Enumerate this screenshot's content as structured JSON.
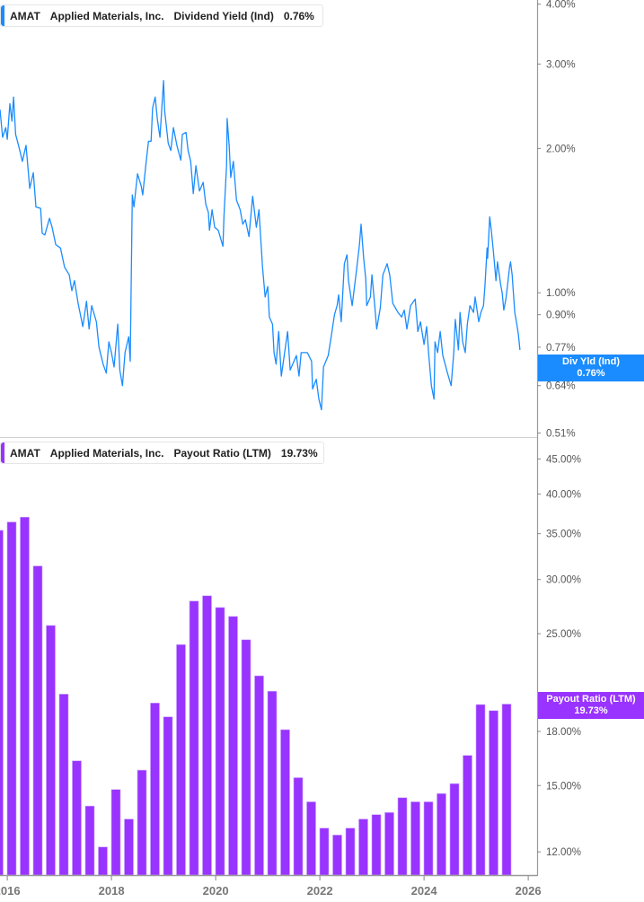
{
  "colors": {
    "yield_line": "#1a8cff",
    "payout_bars": "#9933ff",
    "axis": "#999999"
  },
  "top_legend": {
    "ticker": "AMAT",
    "company": "Applied Materials, Inc.",
    "metric": "Dividend Yield (Ind)",
    "value": "0.76%"
  },
  "bottom_legend": {
    "ticker": "AMAT",
    "company": "Applied Materials, Inc.",
    "metric": "Payout Ratio (LTM)",
    "value": "19.73%"
  },
  "top_tag": {
    "label": "Div Yld (Ind)",
    "value": "0.76%"
  },
  "bottom_tag": {
    "label": "Payout Ratio (LTM)",
    "value": "19.73%"
  },
  "x_axis": {
    "ticks": [
      "2016",
      "2018",
      "2020",
      "2022",
      "2024",
      "2026"
    ]
  },
  "chart_data": [
    {
      "type": "line",
      "series_label": "Dividend Yield (Ind)",
      "yscale": "log",
      "ylim": [
        0.5,
        4.08
      ],
      "xlim": [
        2015.86,
        2026.17
      ],
      "y_ticks": [
        "4.00%",
        "3.00%",
        "2.00%",
        "1.00%",
        "0.90%",
        "0.77%",
        "0.64%",
        "0.51%"
      ],
      "y_tick_values": [
        4.0,
        3.0,
        2.0,
        1.0,
        0.9,
        0.77,
        0.64,
        0.51
      ],
      "x": [
        2015.86,
        2015.91,
        2015.97,
        2016.0,
        2016.05,
        2016.09,
        2016.12,
        2016.16,
        2016.22,
        2016.29,
        2016.36,
        2016.43,
        2016.5,
        2016.55,
        2016.64,
        2016.67,
        2016.72,
        2016.81,
        2016.86,
        2016.93,
        2017.02,
        2017.1,
        2017.19,
        2017.24,
        2017.29,
        2017.36,
        2017.45,
        2017.52,
        2017.57,
        2017.62,
        2017.71,
        2017.76,
        2017.84,
        2017.9,
        2017.95,
        2018.0,
        2018.05,
        2018.12,
        2018.16,
        2018.21,
        2018.26,
        2018.33,
        2018.36,
        2018.4,
        2018.43,
        2018.5,
        2018.57,
        2018.6,
        2018.66,
        2018.71,
        2018.76,
        2018.79,
        2018.84,
        2018.88,
        2018.93,
        2019.0,
        2019.02,
        2019.09,
        2019.14,
        2019.19,
        2019.26,
        2019.33,
        2019.36,
        2019.43,
        2019.47,
        2019.52,
        2019.57,
        2019.62,
        2019.69,
        2019.76,
        2019.81,
        2019.86,
        2019.88,
        2019.93,
        2019.98,
        2020.05,
        2020.14,
        2020.16,
        2020.21,
        2020.22,
        2020.26,
        2020.29,
        2020.34,
        2020.4,
        2020.47,
        2020.52,
        2020.57,
        2020.64,
        2020.71,
        2020.78,
        2020.83,
        2020.9,
        2020.95,
        2021.0,
        2021.03,
        2021.09,
        2021.12,
        2021.16,
        2021.21,
        2021.26,
        2021.38,
        2021.43,
        2021.55,
        2021.6,
        2021.64,
        2021.76,
        2021.84,
        2021.86,
        2021.93,
        2021.98,
        2022.03,
        2022.07,
        2022.16,
        2022.21,
        2022.28,
        2022.33,
        2022.36,
        2022.41,
        2022.47,
        2022.52,
        2022.55,
        2022.62,
        2022.71,
        2022.76,
        2022.79,
        2022.84,
        2022.88,
        2022.9,
        2022.97,
        2023.0,
        2023.05,
        2023.09,
        2023.16,
        2023.21,
        2023.29,
        2023.34,
        2023.4,
        2023.45,
        2023.5,
        2023.57,
        2023.62,
        2023.67,
        2023.74,
        2023.83,
        2023.88,
        2023.93,
        2024.0,
        2024.05,
        2024.09,
        2024.14,
        2024.19,
        2024.21,
        2024.26,
        2024.31,
        2024.36,
        2024.45,
        2024.52,
        2024.57,
        2024.6,
        2024.66,
        2024.69,
        2024.74,
        2024.79,
        2024.83,
        2024.88,
        2024.95,
        2024.98,
        2025.05,
        2025.09,
        2025.14,
        2025.17,
        2025.21,
        2025.22,
        2025.26,
        2025.29,
        2025.33,
        2025.38,
        2025.41,
        2025.47,
        2025.5,
        2025.53,
        2025.57,
        2025.6,
        2025.64,
        2025.66,
        2025.69,
        2025.74,
        2025.78,
        2025.81,
        2025.84
      ],
      "y": [
        2.41,
        2.11,
        2.21,
        2.09,
        2.48,
        2.28,
        2.56,
        2.14,
        2.02,
        1.88,
        2.03,
        1.65,
        1.78,
        1.51,
        1.5,
        1.33,
        1.32,
        1.43,
        1.37,
        1.26,
        1.24,
        1.13,
        1.09,
        1.01,
        1.06,
        0.95,
        0.85,
        0.96,
        0.84,
        0.94,
        0.87,
        0.77,
        0.71,
        0.68,
        0.79,
        0.75,
        0.7,
        0.86,
        0.69,
        0.64,
        0.75,
        0.81,
        0.72,
        1.6,
        1.51,
        1.77,
        1.67,
        1.6,
        1.85,
        2.07,
        2.07,
        2.43,
        2.56,
        2.3,
        2.11,
        2.77,
        2.4,
        2.05,
        1.98,
        2.21,
        2.02,
        1.89,
        2.14,
        2.16,
        1.98,
        1.88,
        1.61,
        1.84,
        1.63,
        1.7,
        1.53,
        1.47,
        1.35,
        1.49,
        1.37,
        1.35,
        1.25,
        1.45,
        1.85,
        2.31,
        2.02,
        1.74,
        1.88,
        1.56,
        1.49,
        1.39,
        1.42,
        1.31,
        1.59,
        1.37,
        1.49,
        1.13,
        0.98,
        1.03,
        0.89,
        0.86,
        0.75,
        0.71,
        0.83,
        0.67,
        0.83,
        0.69,
        0.74,
        0.67,
        0.75,
        0.75,
        0.72,
        0.63,
        0.66,
        0.6,
        0.57,
        0.7,
        0.74,
        0.8,
        0.9,
        0.94,
        0.99,
        0.87,
        1.15,
        1.2,
        1.06,
        0.94,
        1.13,
        1.26,
        1.39,
        1.18,
        1.07,
        0.94,
        0.98,
        1.09,
        0.95,
        0.84,
        0.93,
        1.09,
        1.15,
        1.09,
        0.95,
        0.93,
        0.91,
        0.89,
        0.92,
        0.84,
        0.94,
        0.97,
        0.83,
        0.87,
        0.78,
        0.85,
        0.74,
        0.64,
        0.6,
        0.79,
        0.75,
        0.83,
        0.74,
        0.68,
        0.64,
        0.75,
        0.88,
        0.76,
        0.91,
        0.79,
        0.75,
        0.86,
        0.94,
        0.91,
        0.98,
        0.87,
        0.91,
        0.94,
        1.04,
        1.24,
        1.18,
        1.44,
        1.35,
        1.22,
        1.06,
        1.16,
        1.04,
        1.0,
        0.92,
        0.97,
        1.03,
        1.13,
        1.16,
        1.09,
        0.91,
        0.86,
        0.82,
        0.76
      ]
    },
    {
      "type": "bar",
      "series_label": "Payout Ratio (LTM)",
      "yscale": "log",
      "ylim": [
        11.1,
        48.0
      ],
      "xlim": [
        2015.86,
        2026.17
      ],
      "y_ticks": [
        "45.00%",
        "40.00%",
        "35.00%",
        "30.00%",
        "25.00%",
        "18.00%",
        "15.00%",
        "12.00%"
      ],
      "y_tick_values": [
        45,
        40,
        35,
        30,
        25,
        18,
        15,
        12
      ],
      "categories": [
        "Oct 2015",
        "Jan 2016",
        "Apr 2016",
        "Jul 2016",
        "Oct 2016",
        "Jan 2017",
        "Apr 2017",
        "Jul 2017",
        "Oct 2017",
        "Jan 2018",
        "Apr 2018",
        "Jul 2018",
        "Oct 2018",
        "Jan 2019",
        "Apr 2019",
        "Jul 2019",
        "Oct 2019",
        "Jan 2020",
        "Apr 2020",
        "Jul 2020",
        "Oct 2020",
        "Jan 2021",
        "Apr 2021",
        "Jul 2021",
        "Oct 2021",
        "Jan 2022",
        "Apr 2022",
        "Jul 2022",
        "Oct 2022",
        "Jan 2023",
        "Apr 2023",
        "Jul 2023",
        "Oct 2023",
        "Jan 2024",
        "Apr 2024",
        "Jul 2024",
        "Oct 2024",
        "Jan 2025",
        "Apr 2025",
        "Jul 2025"
      ],
      "values": [
        35.4,
        36.4,
        37.0,
        31.4,
        25.7,
        20.4,
        16.3,
        14.0,
        12.2,
        14.8,
        13.4,
        15.8,
        19.8,
        18.9,
        24.1,
        27.9,
        28.4,
        27.3,
        26.5,
        24.5,
        21.7,
        20.6,
        18.1,
        15.4,
        14.2,
        13.0,
        12.7,
        13.0,
        13.4,
        13.6,
        13.7,
        14.4,
        14.2,
        14.2,
        14.6,
        15.1,
        16.6,
        19.7,
        19.3,
        19.73
      ]
    }
  ]
}
